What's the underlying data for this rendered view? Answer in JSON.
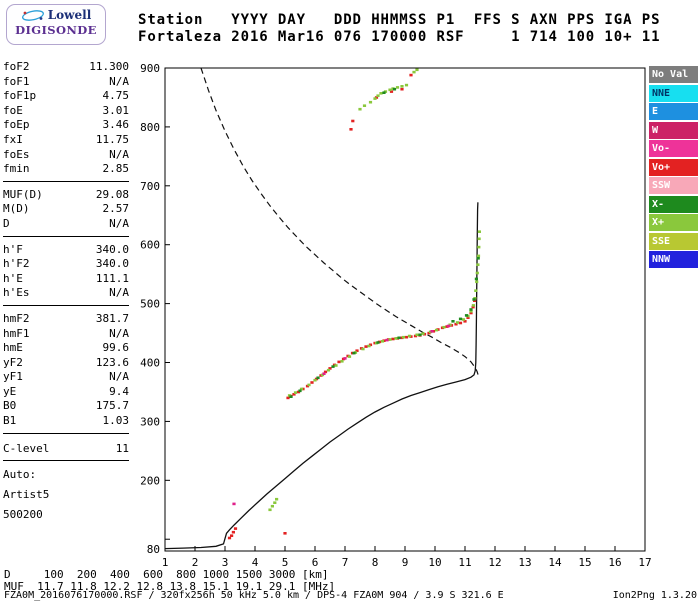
{
  "logo": {
    "top": "Lowell",
    "bottom": "DIGISONDE"
  },
  "header": {
    "line1": "Station   YYYY DAY   DDD HHMMSS P1  FFS S AXN PPS IGA PS",
    "line2": "Fortaleza 2016 Mar16 076 170000 RSF     1 714 100 10+ 11"
  },
  "left_panel": {
    "groups": [
      {
        "rows": [
          [
            "foF2",
            "11.300"
          ],
          [
            "foF1",
            "N/A"
          ],
          [
            "foF1p",
            "4.75"
          ],
          [
            "foE",
            "3.01"
          ],
          [
            "foEp",
            "3.46"
          ],
          [
            "fxI",
            "11.75"
          ],
          [
            "foEs",
            "N/A"
          ],
          [
            "fmin",
            "2.85"
          ]
        ]
      },
      {
        "rows": [
          [
            "MUF(D)",
            "29.08"
          ],
          [
            "M(D)",
            "2.57"
          ],
          [
            "D",
            "N/A"
          ]
        ]
      },
      {
        "rows": [
          [
            "h'F",
            "340.0"
          ],
          [
            "h'F2",
            "340.0"
          ],
          [
            "h'E",
            "111.1"
          ],
          [
            "h'Es",
            "N/A"
          ]
        ]
      },
      {
        "rows": [
          [
            "hmF2",
            "381.7"
          ],
          [
            "hmF1",
            "N/A"
          ],
          [
            "hmE",
            "99.6"
          ],
          [
            "yF2",
            "123.6"
          ],
          [
            "yF1",
            "N/A"
          ],
          [
            "yE",
            "9.4"
          ],
          [
            "B0",
            "175.7"
          ],
          [
            "B1",
            "1.03"
          ]
        ]
      },
      {
        "gap_before": true,
        "rows": [
          [
            "C-level",
            "11"
          ]
        ]
      }
    ],
    "footer": [
      "Auto:",
      "Artist5",
      "500200"
    ]
  },
  "bottom": {
    "d_row": {
      "label": "D",
      "values": [
        "100",
        "200",
        "400",
        "600",
        "800",
        "1000",
        "1500",
        "3000"
      ],
      "unit": "[km]"
    },
    "muf_row": {
      "label": "MUF",
      "values": [
        "11.7",
        "11.8",
        "12.2",
        "12.8",
        "13.8",
        "15.1",
        "19.1",
        "29.1"
      ],
      "unit": "[MHz]"
    },
    "footer_left": "FZA0M_2016076170000.RSF / 320fx256h 50 kHz 5.0 km / DPS-4 FZA0M 904 / 3.9 S 321.6 E",
    "footer_right": "Ion2Png 1.3.20"
  },
  "chart_data": {
    "type": "scatter",
    "title": "Fortaleza ionogram 2016 Mar16 076 170000",
    "xlabel": "[MHz]",
    "ylabel": "[km]",
    "grid": false,
    "x_axis": {
      "min": 1,
      "max": 17,
      "ticks": [
        [
          1,
          "1"
        ],
        [
          2,
          "2"
        ],
        [
          3,
          "3"
        ],
        [
          4,
          "4"
        ],
        [
          5,
          "5"
        ],
        [
          6,
          "6"
        ],
        [
          7,
          "7"
        ],
        [
          8,
          "8"
        ],
        [
          9,
          "9"
        ],
        [
          10,
          "10"
        ],
        [
          11,
          "11"
        ],
        [
          12,
          "12"
        ],
        [
          13,
          "13"
        ],
        [
          14,
          "14"
        ],
        [
          15,
          "15"
        ],
        [
          16,
          "16"
        ],
        [
          17,
          "17"
        ]
      ]
    },
    "y_axis": {
      "min": 80,
      "max": 900,
      "ticks": [
        [
          900,
          "900"
        ],
        [
          800,
          "800"
        ],
        [
          700,
          "700"
        ],
        [
          600,
          "600"
        ],
        [
          500,
          "500"
        ],
        [
          400,
          "400"
        ],
        [
          300,
          "300"
        ],
        [
          200,
          "200"
        ],
        [
          100,
          ""
        ],
        [
          80,
          "80"
        ]
      ]
    },
    "topside_line": {
      "name": "modeled topside profile",
      "style": "dashed",
      "color": "#111111",
      "points": [
        [
          2.2,
          900
        ],
        [
          2.45,
          862
        ],
        [
          2.7,
          828
        ],
        [
          3.0,
          793
        ],
        [
          3.3,
          762
        ],
        [
          3.6,
          734
        ],
        [
          3.9,
          709
        ],
        [
          4.2,
          687
        ],
        [
          4.5,
          666
        ],
        [
          4.8,
          647
        ],
        [
          5.1,
          629
        ],
        [
          5.4,
          613
        ],
        [
          5.7,
          597
        ],
        [
          6.0,
          583
        ],
        [
          6.3,
          569
        ],
        [
          6.6,
          556
        ],
        [
          6.9,
          543
        ],
        [
          7.2,
          531
        ],
        [
          7.5,
          520
        ],
        [
          7.8,
          509
        ],
        [
          8.1,
          498
        ],
        [
          8.4,
          488
        ],
        [
          8.7,
          478
        ],
        [
          9.0,
          469
        ],
        [
          9.3,
          460
        ],
        [
          9.6,
          451
        ],
        [
          9.9,
          443
        ],
        [
          10.2,
          434
        ],
        [
          10.5,
          426
        ],
        [
          10.8,
          417
        ],
        [
          11.0,
          410
        ],
        [
          11.2,
          401
        ],
        [
          11.3,
          394
        ],
        [
          11.4,
          385
        ],
        [
          11.45,
          377
        ]
      ]
    },
    "profile_line": {
      "name": "true-height electron density profile",
      "style": "solid",
      "color": "#111111",
      "points": [
        [
          1.0,
          84
        ],
        [
          1.6,
          85
        ],
        [
          2.2,
          86
        ],
        [
          2.7,
          88
        ],
        [
          2.95,
          92
        ],
        [
          3.0,
          101
        ],
        [
          3.05,
          110
        ],
        [
          3.15,
          116
        ],
        [
          3.3,
          124
        ],
        [
          3.5,
          134
        ],
        [
          3.8,
          149
        ],
        [
          4.1,
          163
        ],
        [
          4.4,
          177
        ],
        [
          4.7,
          190
        ],
        [
          5.0,
          203
        ],
        [
          5.3,
          216
        ],
        [
          5.6,
          229
        ],
        [
          5.9,
          241
        ],
        [
          6.2,
          253
        ],
        [
          6.5,
          265
        ],
        [
          6.8,
          276
        ],
        [
          7.1,
          287
        ],
        [
          7.4,
          297
        ],
        [
          7.7,
          307
        ],
        [
          8.0,
          316
        ],
        [
          8.3,
          324
        ],
        [
          8.6,
          331
        ],
        [
          8.9,
          338
        ],
        [
          9.2,
          344
        ],
        [
          9.5,
          349
        ],
        [
          9.8,
          354
        ],
        [
          10.1,
          359
        ],
        [
          10.4,
          363
        ],
        [
          10.7,
          367
        ],
        [
          11.0,
          371
        ],
        [
          11.2,
          375
        ],
        [
          11.3,
          379
        ],
        [
          11.34,
          386
        ],
        [
          11.36,
          400
        ],
        [
          11.37,
          430
        ],
        [
          11.38,
          470
        ],
        [
          11.39,
          520
        ],
        [
          11.4,
          570
        ],
        [
          11.41,
          620
        ],
        [
          11.42,
          660
        ],
        [
          11.43,
          672
        ]
      ]
    },
    "echo_series": [
      {
        "name": "Vo+",
        "color": "#e32222",
        "points": [
          [
            5.1,
            340
          ],
          [
            5.2,
            343
          ],
          [
            5.3,
            346
          ],
          [
            5.45,
            350
          ],
          [
            5.6,
            355
          ],
          [
            5.75,
            360
          ],
          [
            5.9,
            366
          ],
          [
            6.05,
            372
          ],
          [
            6.2,
            378
          ],
          [
            6.35,
            384
          ],
          [
            6.5,
            390
          ],
          [
            6.65,
            396
          ],
          [
            6.8,
            401
          ],
          [
            6.95,
            406
          ],
          [
            7.1,
            411
          ],
          [
            7.25,
            416
          ],
          [
            7.4,
            420
          ],
          [
            7.55,
            424
          ],
          [
            7.7,
            427
          ],
          [
            7.85,
            430
          ],
          [
            8.0,
            433
          ],
          [
            8.15,
            435
          ],
          [
            8.3,
            437
          ],
          [
            8.45,
            439
          ],
          [
            8.6,
            440
          ],
          [
            8.75,
            441
          ],
          [
            8.9,
            442
          ],
          [
            9.05,
            443
          ],
          [
            9.2,
            444
          ],
          [
            9.35,
            445
          ],
          [
            9.5,
            446
          ],
          [
            9.65,
            448
          ],
          [
            9.8,
            450
          ],
          [
            9.95,
            453
          ],
          [
            10.1,
            456
          ],
          [
            10.25,
            459
          ],
          [
            10.4,
            461
          ],
          [
            10.55,
            463
          ],
          [
            10.7,
            465
          ],
          [
            10.85,
            467
          ],
          [
            11.0,
            470
          ],
          [
            11.1,
            476
          ],
          [
            11.2,
            484
          ],
          [
            11.27,
            494
          ],
          [
            11.32,
            505
          ],
          [
            3.15,
            102
          ],
          [
            3.22,
            106
          ],
          [
            3.28,
            112
          ],
          [
            3.35,
            118
          ],
          [
            5.0,
            110
          ],
          [
            7.2,
            796
          ],
          [
            7.26,
            810
          ],
          [
            8.05,
            850
          ],
          [
            8.55,
            860
          ],
          [
            8.9,
            864
          ],
          [
            9.2,
            888
          ]
        ]
      },
      {
        "name": "X+",
        "color": "#8ac83c",
        "points": [
          [
            5.15,
            344
          ],
          [
            5.35,
            349
          ],
          [
            5.55,
            355
          ],
          [
            5.8,
            362
          ],
          [
            6.0,
            370
          ],
          [
            6.25,
            379
          ],
          [
            6.45,
            387
          ],
          [
            6.7,
            395
          ],
          [
            6.9,
            402
          ],
          [
            7.15,
            410
          ],
          [
            7.35,
            417
          ],
          [
            7.6,
            423
          ],
          [
            7.8,
            428
          ],
          [
            8.05,
            433
          ],
          [
            8.25,
            436
          ],
          [
            8.5,
            439
          ],
          [
            8.7,
            441
          ],
          [
            8.95,
            443
          ],
          [
            9.15,
            445
          ],
          [
            9.4,
            447
          ],
          [
            9.6,
            449
          ],
          [
            9.85,
            452
          ],
          [
            10.05,
            455
          ],
          [
            10.3,
            460
          ],
          [
            10.5,
            464
          ],
          [
            10.75,
            468
          ],
          [
            10.95,
            473
          ],
          [
            11.1,
            479
          ],
          [
            11.2,
            487
          ],
          [
            11.28,
            497
          ],
          [
            11.33,
            509
          ],
          [
            11.36,
            522
          ],
          [
            11.39,
            537
          ],
          [
            11.41,
            552
          ],
          [
            11.43,
            566
          ],
          [
            11.45,
            581
          ],
          [
            11.46,
            596
          ],
          [
            11.47,
            610
          ],
          [
            11.48,
            622
          ],
          [
            4.5,
            150
          ],
          [
            4.58,
            156
          ],
          [
            4.66,
            162
          ],
          [
            4.72,
            168
          ],
          [
            7.5,
            830
          ],
          [
            7.65,
            836
          ],
          [
            7.85,
            842
          ],
          [
            8.0,
            848
          ],
          [
            8.1,
            853
          ],
          [
            8.2,
            857
          ],
          [
            8.35,
            860
          ],
          [
            8.5,
            863
          ],
          [
            8.6,
            865
          ],
          [
            8.75,
            867
          ],
          [
            8.9,
            869
          ],
          [
            9.05,
            871
          ],
          [
            9.3,
            893
          ],
          [
            9.4,
            897
          ]
        ]
      },
      {
        "name": "X-",
        "color": "#1e8a1e",
        "points": [
          [
            5.2,
            342
          ],
          [
            5.5,
            352
          ],
          [
            6.1,
            374
          ],
          [
            6.6,
            393
          ],
          [
            7.3,
            416
          ],
          [
            8.1,
            434
          ],
          [
            8.8,
            442
          ],
          [
            9.5,
            447
          ],
          [
            10.6,
            470
          ],
          [
            10.85,
            474
          ],
          [
            11.05,
            480
          ],
          [
            11.2,
            490
          ],
          [
            11.3,
            507
          ],
          [
            11.38,
            542
          ],
          [
            11.44,
            577
          ],
          [
            8.3,
            858
          ],
          [
            8.65,
            864
          ]
        ]
      },
      {
        "name": "Vo-",
        "color": "#e0218a",
        "points": [
          [
            6.3,
            381
          ],
          [
            7.0,
            407
          ],
          [
            8.4,
            438
          ],
          [
            9.9,
            453
          ],
          [
            10.45,
            462
          ],
          [
            3.3,
            160
          ]
        ]
      }
    ],
    "legend": {
      "position": "right",
      "items": [
        {
          "label": "No Val",
          "color": "#7d7d7d",
          "text_color": "#ffffff"
        },
        {
          "label": "NNE",
          "color": "#17dff0",
          "text_color": "#003366"
        },
        {
          "label": "E",
          "color": "#1e90e0",
          "text_color": "#ffffff"
        },
        {
          "label": "W",
          "color": "#cc2266",
          "text_color": "#ffffff"
        },
        {
          "label": "Vo-",
          "color": "#ee3399",
          "text_color": "#ffffff"
        },
        {
          "label": "Vo+",
          "color": "#e32222",
          "text_color": "#ffffff"
        },
        {
          "label": "SSW",
          "color": "#f8a8b8",
          "text_color": "#ffffff"
        },
        {
          "label": "X-",
          "color": "#1e8a1e",
          "text_color": "#ffffff"
        },
        {
          "label": "X+",
          "color": "#8ac83c",
          "text_color": "#ffffff"
        },
        {
          "label": "SSE",
          "color": "#b8c832",
          "text_color": "#ffffff"
        },
        {
          "label": "NNW",
          "color": "#2222dd",
          "text_color": "#ffffff"
        }
      ]
    }
  }
}
